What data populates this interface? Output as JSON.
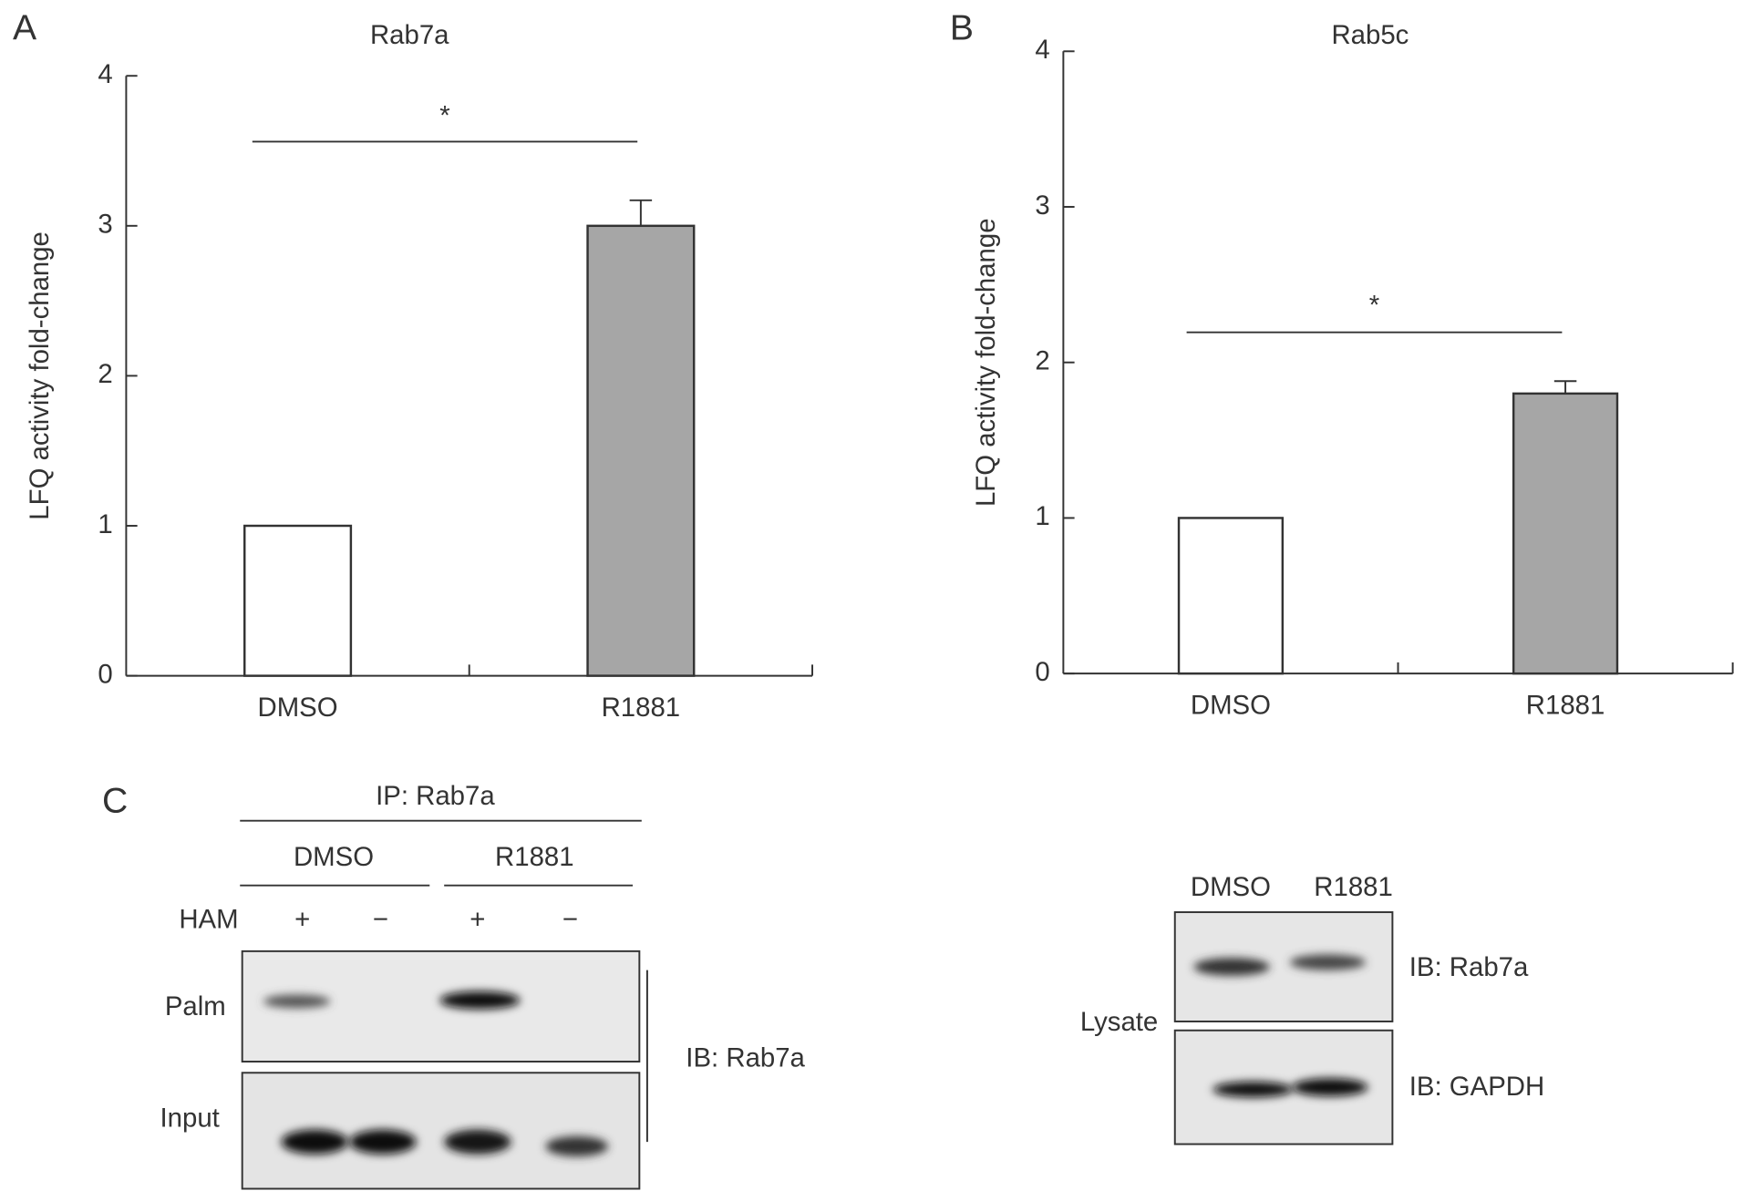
{
  "chart_data": [
    {
      "type": "bar",
      "panel": "A",
      "title": "Rab7a",
      "ylabel": "LFQ activity fold-change",
      "categories": [
        "DMSO",
        "R1881"
      ],
      "values": [
        1,
        3.0
      ],
      "errors": [
        0,
        0.17
      ],
      "colors": [
        "#ffffff",
        "#a6a6a6"
      ],
      "ylim": [
        0,
        4
      ],
      "yticks": [
        0,
        1,
        2,
        3,
        4
      ],
      "annotation": "*"
    },
    {
      "type": "bar",
      "panel": "B",
      "title": "Rab5c",
      "ylabel": "LFQ activity fold-change",
      "categories": [
        "DMSO",
        "R1881"
      ],
      "values": [
        1,
        1.8
      ],
      "errors": [
        0,
        0.08
      ],
      "colors": [
        "#ffffff",
        "#a6a6a6"
      ],
      "ylim": [
        0,
        4
      ],
      "yticks": [
        0,
        1,
        2,
        3,
        4
      ],
      "annotation": "*"
    }
  ],
  "blot": {
    "panel": "C",
    "ip": "IP: Rab7a",
    "groups": [
      "DMSO",
      "R1881"
    ],
    "ham": "HAM",
    "ham_signs": [
      "+",
      "−",
      "+",
      "−"
    ],
    "rows": [
      "Palm",
      "Input"
    ],
    "ib": "IB: Rab7a",
    "lysate": {
      "label": "Lysate",
      "columns": [
        "DMSO",
        "R1881"
      ],
      "ib": [
        "IB: Rab7a",
        "IB: GAPDH"
      ]
    }
  }
}
